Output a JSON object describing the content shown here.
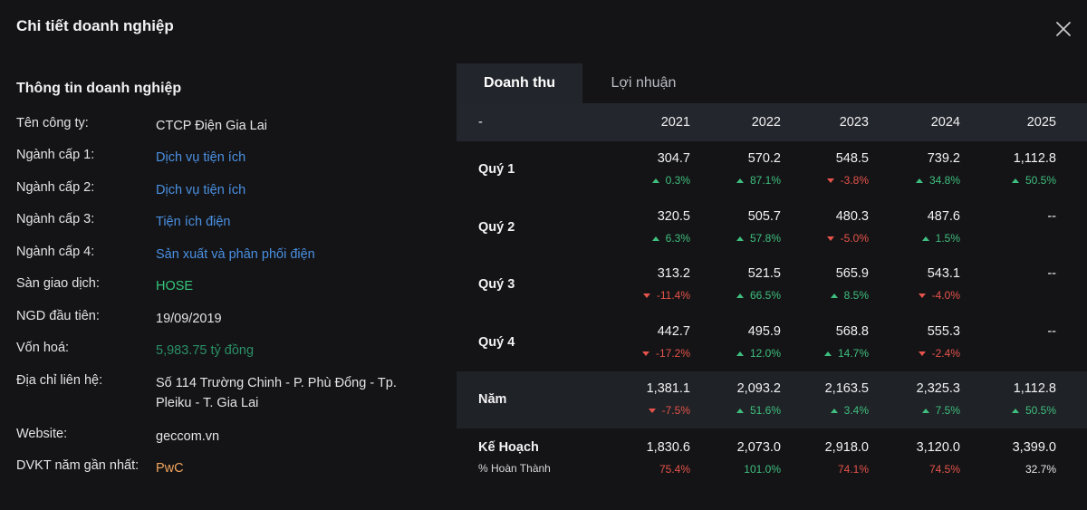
{
  "modal": {
    "title": "Chi tiết doanh nghiệp"
  },
  "info": {
    "title": "Thông tin doanh nghiệp",
    "rows": [
      {
        "label": "Tên công ty:",
        "value": "CTCP Điện Gia Lai"
      },
      {
        "label": "Ngành cấp 1:",
        "value": "Dịch vụ tiện ích"
      },
      {
        "label": "Ngành cấp 2:",
        "value": "Dịch vụ tiện ích"
      },
      {
        "label": "Ngành cấp 3:",
        "value": "Tiện ích điện"
      },
      {
        "label": "Ngành cấp 4:",
        "value": "Sản xuất và phân phối điện"
      },
      {
        "label": "Sàn giao dịch:",
        "value": "HOSE"
      },
      {
        "label": "NGD đầu tiên:",
        "value": "19/09/2019"
      },
      {
        "label": "Vốn hoá:",
        "value": "5,983.75 tỷ đồng"
      },
      {
        "label": "Địa chỉ liên hệ:",
        "value": "Số 114 Trường Chinh - P. Phù Đổng - Tp. Pleiku - T. Gia Lai"
      },
      {
        "label": "Website:",
        "value": "geccom.vn"
      },
      {
        "label": "DVKT năm gần nhất:",
        "value": "PwC"
      }
    ]
  },
  "tabs": [
    {
      "label": "Doanh thu",
      "active": true
    },
    {
      "label": "Lợi nhuận",
      "active": false
    }
  ],
  "table": {
    "corner": "-",
    "years": [
      "2021",
      "2022",
      "2023",
      "2024",
      "2025"
    ],
    "rows": [
      {
        "label": "Quý 1",
        "cells": [
          {
            "value": "304.7",
            "change": "0.3%",
            "dir": "up"
          },
          {
            "value": "570.2",
            "change": "87.1%",
            "dir": "up"
          },
          {
            "value": "548.5",
            "change": "-3.8%",
            "dir": "down"
          },
          {
            "value": "739.2",
            "change": "34.8%",
            "dir": "up"
          },
          {
            "value": "1,112.8",
            "change": "50.5%",
            "dir": "up"
          }
        ]
      },
      {
        "label": "Quý 2",
        "cells": [
          {
            "value": "320.5",
            "change": "6.3%",
            "dir": "up"
          },
          {
            "value": "505.7",
            "change": "57.8%",
            "dir": "up"
          },
          {
            "value": "480.3",
            "change": "-5.0%",
            "dir": "down"
          },
          {
            "value": "487.6",
            "change": "1.5%",
            "dir": "up"
          },
          {
            "value": "--",
            "change": "",
            "dir": ""
          }
        ]
      },
      {
        "label": "Quý 3",
        "cells": [
          {
            "value": "313.2",
            "change": "-11.4%",
            "dir": "down"
          },
          {
            "value": "521.5",
            "change": "66.5%",
            "dir": "up"
          },
          {
            "value": "565.9",
            "change": "8.5%",
            "dir": "up"
          },
          {
            "value": "543.1",
            "change": "-4.0%",
            "dir": "down"
          },
          {
            "value": "--",
            "change": "",
            "dir": ""
          }
        ]
      },
      {
        "label": "Quý 4",
        "cells": [
          {
            "value": "442.7",
            "change": "-17.2%",
            "dir": "down"
          },
          {
            "value": "495.9",
            "change": "12.0%",
            "dir": "up"
          },
          {
            "value": "568.8",
            "change": "14.7%",
            "dir": "up"
          },
          {
            "value": "555.3",
            "change": "-2.4%",
            "dir": "down"
          },
          {
            "value": "--",
            "change": "",
            "dir": ""
          }
        ]
      },
      {
        "label": "Năm",
        "cells": [
          {
            "value": "1,381.1",
            "change": "-7.5%",
            "dir": "down"
          },
          {
            "value": "2,093.2",
            "change": "51.6%",
            "dir": "up"
          },
          {
            "value": "2,163.5",
            "change": "3.4%",
            "dir": "up"
          },
          {
            "value": "2,325.3",
            "change": "7.5%",
            "dir": "up"
          },
          {
            "value": "1,112.8",
            "change": "50.5%",
            "dir": "up"
          }
        ]
      }
    ],
    "plan": {
      "label": "Kế Hoạch",
      "sub_label": "% Hoàn Thành",
      "cells": [
        {
          "value": "1,830.6",
          "pct": "75.4%",
          "tone": "red"
        },
        {
          "value": "2,073.0",
          "pct": "101.0%",
          "tone": "green"
        },
        {
          "value": "2,918.0",
          "pct": "74.1%",
          "tone": "red"
        },
        {
          "value": "3,120.0",
          "pct": "74.5%",
          "tone": "red"
        },
        {
          "value": "3,399.0",
          "pct": "32.7%",
          "tone": "white"
        }
      ]
    }
  },
  "colors": {
    "background": "#141416",
    "header_bg": "#23262c",
    "link": "#4a90e2",
    "up": "#3fbf7f",
    "down": "#e5534b",
    "exchange": "#34c67a",
    "auditor": "#f0a35e"
  }
}
